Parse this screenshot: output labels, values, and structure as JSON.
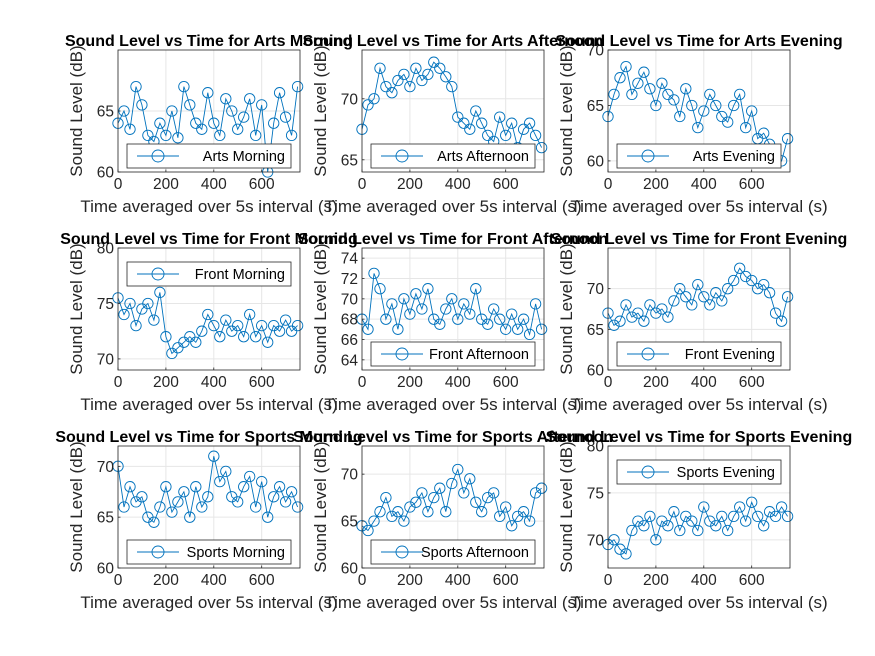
{
  "figure": {
    "background": "#ffffff"
  },
  "style": {
    "series_color": "#0072BD",
    "axis_color": "#262626",
    "grid_color": "#e6e6e6",
    "marker": "circle-open"
  },
  "chart_data": [
    {
      "type": "line",
      "title": "Sound Level vs Time for Arts Morning",
      "xlabel": "Time averaged over 5s interval (s)",
      "ylabel": "Sound Level (dB)",
      "xlim": [
        0,
        760
      ],
      "ylim": [
        60,
        70
      ],
      "xticks": [
        0,
        200,
        400,
        600
      ],
      "yticks": [
        60,
        65
      ],
      "grid": true,
      "legend_loc": "bottom",
      "series": [
        {
          "name": "Arts Morning",
          "x": [
            0,
            25,
            50,
            75,
            100,
            125,
            150,
            175,
            200,
            225,
            250,
            275,
            300,
            325,
            350,
            375,
            400,
            425,
            450,
            475,
            500,
            525,
            550,
            575,
            600,
            625,
            650,
            675,
            700,
            725,
            750
          ],
          "values": [
            64.0,
            65.0,
            63.5,
            67.0,
            65.5,
            63.0,
            62.5,
            64.0,
            63.0,
            65.0,
            62.8,
            67.0,
            65.5,
            64.0,
            63.5,
            66.5,
            64.0,
            63.0,
            66.0,
            65.0,
            63.5,
            64.5,
            66.0,
            63.0,
            65.5,
            60.0,
            64.0,
            66.5,
            64.5,
            63.0,
            67.0
          ]
        }
      ]
    },
    {
      "type": "line",
      "title": "Sound Level vs Time for Arts Afternoon",
      "xlabel": "Time averaged over 5s interval (s)",
      "ylabel": "Sound Level (dB)",
      "xlim": [
        0,
        760
      ],
      "ylim": [
        64,
        74
      ],
      "xticks": [
        0,
        200,
        400,
        600
      ],
      "yticks": [
        65,
        70
      ],
      "grid": true,
      "legend_loc": "bottom",
      "series": [
        {
          "name": "Arts Afternoon",
          "x": [
            0,
            25,
            50,
            75,
            100,
            125,
            150,
            175,
            200,
            225,
            250,
            275,
            300,
            325,
            350,
            375,
            400,
            425,
            450,
            475,
            500,
            525,
            550,
            575,
            600,
            625,
            650,
            675,
            700,
            725,
            750
          ],
          "values": [
            67.5,
            69.5,
            70.0,
            72.5,
            71.0,
            70.5,
            71.5,
            72.0,
            71.0,
            72.5,
            71.5,
            72.0,
            73.0,
            72.5,
            71.8,
            71.0,
            68.5,
            68.0,
            67.5,
            69.0,
            68.0,
            67.0,
            66.5,
            68.5,
            67.0,
            68.0,
            66.0,
            67.5,
            68.0,
            67.0,
            66.0
          ]
        }
      ]
    },
    {
      "type": "line",
      "title": "Sound Level vs Time for Arts Evening",
      "xlabel": "Time averaged over 5s interval (s)",
      "ylabel": "Sound Level (dB)",
      "xlim": [
        0,
        760
      ],
      "ylim": [
        59,
        70
      ],
      "xticks": [
        0,
        200,
        400,
        600
      ],
      "yticks": [
        60,
        65,
        70
      ],
      "grid": true,
      "legend_loc": "bottom",
      "series": [
        {
          "name": "Arts Evening",
          "x": [
            0,
            25,
            50,
            75,
            100,
            125,
            150,
            175,
            200,
            225,
            250,
            275,
            300,
            325,
            350,
            375,
            400,
            425,
            450,
            475,
            500,
            525,
            550,
            575,
            600,
            625,
            650,
            675,
            700,
            725,
            750
          ],
          "values": [
            64.0,
            66.0,
            67.5,
            68.5,
            66.0,
            67.0,
            68.0,
            66.5,
            65.0,
            67.0,
            66.0,
            65.5,
            64.0,
            66.5,
            65.0,
            63.0,
            64.5,
            66.0,
            65.0,
            64.0,
            63.5,
            65.0,
            66.0,
            63.0,
            64.5,
            62.0,
            62.5,
            61.5,
            60.5,
            60.0,
            62.0
          ]
        }
      ]
    },
    {
      "type": "line",
      "title": "Sound Level vs Time for Front Morning",
      "xlabel": "Time averaged over 5s interval (s)",
      "ylabel": "Sound Level (dB)",
      "xlim": [
        0,
        760
      ],
      "ylim": [
        69,
        80
      ],
      "xticks": [
        0,
        200,
        400,
        600
      ],
      "yticks": [
        70,
        75,
        80
      ],
      "grid": true,
      "legend_loc": "top",
      "series": [
        {
          "name": "Front Morning",
          "x": [
            0,
            25,
            50,
            75,
            100,
            125,
            150,
            175,
            200,
            225,
            250,
            275,
            300,
            325,
            350,
            375,
            400,
            425,
            450,
            475,
            500,
            525,
            550,
            575,
            600,
            625,
            650,
            675,
            700,
            725,
            750
          ],
          "values": [
            75.5,
            74.0,
            75.0,
            73.0,
            74.5,
            75.0,
            73.5,
            76.0,
            72.0,
            70.5,
            71.0,
            71.5,
            72.0,
            71.5,
            72.5,
            74.0,
            73.0,
            72.0,
            73.5,
            72.5,
            73.0,
            72.0,
            74.0,
            72.0,
            73.0,
            71.5,
            73.0,
            72.5,
            73.5,
            72.5,
            73.0
          ]
        }
      ]
    },
    {
      "type": "line",
      "title": "Sound Level vs Time for Front Afternoon",
      "xlabel": "Time averaged over 5s interval (s)",
      "ylabel": "Sound Level (dB)",
      "xlim": [
        0,
        760
      ],
      "ylim": [
        63,
        75
      ],
      "xticks": [
        0,
        200,
        400,
        600
      ],
      "yticks": [
        64,
        66,
        68,
        70,
        72,
        74
      ],
      "grid": true,
      "legend_loc": "bottom",
      "series": [
        {
          "name": "Front Afternoon",
          "x": [
            0,
            25,
            50,
            75,
            100,
            125,
            150,
            175,
            200,
            225,
            250,
            275,
            300,
            325,
            350,
            375,
            400,
            425,
            450,
            475,
            500,
            525,
            550,
            575,
            600,
            625,
            650,
            675,
            700,
            725,
            750
          ],
          "values": [
            68.0,
            67.0,
            72.5,
            71.0,
            68.0,
            69.5,
            67.0,
            70.0,
            68.5,
            70.5,
            69.0,
            71.0,
            68.0,
            67.5,
            69.0,
            70.0,
            68.0,
            69.5,
            68.5,
            71.0,
            68.0,
            67.5,
            69.0,
            68.0,
            67.0,
            68.5,
            67.0,
            68.0,
            66.5,
            69.5,
            67.0
          ]
        }
      ]
    },
    {
      "type": "line",
      "title": "Sound Level vs Time for Front Evening",
      "xlabel": "Time averaged over 5s interval (s)",
      "ylabel": "Sound Level (dB)",
      "xlim": [
        0,
        760
      ],
      "ylim": [
        60,
        75
      ],
      "xticks": [
        0,
        200,
        400,
        600
      ],
      "yticks": [
        60,
        65,
        70
      ],
      "grid": true,
      "legend_loc": "bottom",
      "series": [
        {
          "name": "Front Evening",
          "x": [
            0,
            25,
            50,
            75,
            100,
            125,
            150,
            175,
            200,
            225,
            250,
            275,
            300,
            325,
            350,
            375,
            400,
            425,
            450,
            475,
            500,
            525,
            550,
            575,
            600,
            625,
            650,
            675,
            700,
            725,
            750
          ],
          "values": [
            67.0,
            65.5,
            66.0,
            68.0,
            66.5,
            67.0,
            66.0,
            68.0,
            67.0,
            67.5,
            66.5,
            68.5,
            70.0,
            69.0,
            68.0,
            70.5,
            69.0,
            68.0,
            69.5,
            68.5,
            70.0,
            71.0,
            72.5,
            71.5,
            71.0,
            70.0,
            70.5,
            69.5,
            67.0,
            66.0,
            69.0
          ]
        }
      ]
    },
    {
      "type": "line",
      "title": "Sound Level vs Time for Sports Morning",
      "xlabel": "Time averaged over 5s interval (s)",
      "ylabel": "Sound Level (dB)",
      "xlim": [
        0,
        760
      ],
      "ylim": [
        60,
        72
      ],
      "xticks": [
        0,
        200,
        400,
        600
      ],
      "yticks": [
        60,
        65,
        70
      ],
      "grid": true,
      "legend_loc": "bottom",
      "series": [
        {
          "name": "Sports Morning",
          "x": [
            0,
            25,
            50,
            75,
            100,
            125,
            150,
            175,
            200,
            225,
            250,
            275,
            300,
            325,
            350,
            375,
            400,
            425,
            450,
            475,
            500,
            525,
            550,
            575,
            600,
            625,
            650,
            675,
            700,
            725,
            750
          ],
          "values": [
            70.0,
            66.0,
            68.0,
            66.5,
            67.0,
            65.0,
            64.5,
            66.0,
            68.0,
            65.5,
            66.5,
            67.5,
            65.0,
            68.0,
            66.0,
            67.0,
            71.0,
            68.5,
            69.5,
            67.0,
            66.5,
            68.0,
            69.0,
            66.0,
            68.5,
            65.0,
            67.0,
            68.0,
            66.5,
            67.5,
            66.0
          ]
        }
      ]
    },
    {
      "type": "line",
      "title": "Sound Level vs Time for Sports Afternoon",
      "xlabel": "Time averaged over 5s interval (s)",
      "ylabel": "Sound Level (dB)",
      "xlim": [
        0,
        760
      ],
      "ylim": [
        60,
        73
      ],
      "xticks": [
        0,
        200,
        400,
        600
      ],
      "yticks": [
        60,
        65,
        70
      ],
      "grid": true,
      "legend_loc": "bottom",
      "series": [
        {
          "name": "Sports Afternoon",
          "x": [
            0,
            25,
            50,
            75,
            100,
            125,
            150,
            175,
            200,
            225,
            250,
            275,
            300,
            325,
            350,
            375,
            400,
            425,
            450,
            475,
            500,
            525,
            550,
            575,
            600,
            625,
            650,
            675,
            700,
            725,
            750
          ],
          "values": [
            64.5,
            64.0,
            65.0,
            66.0,
            67.5,
            65.5,
            66.0,
            65.0,
            66.5,
            67.0,
            68.0,
            66.0,
            67.5,
            68.5,
            66.0,
            69.0,
            70.5,
            68.0,
            69.5,
            67.0,
            66.0,
            67.5,
            68.0,
            65.5,
            66.5,
            64.5,
            65.5,
            66.0,
            65.0,
            68.0,
            68.5
          ]
        }
      ]
    },
    {
      "type": "line",
      "title": "Sound Level vs Time for Sports Evening",
      "xlabel": "Time averaged over 5s interval (s)",
      "ylabel": "Sound Level (dB)",
      "xlim": [
        0,
        760
      ],
      "ylim": [
        67,
        80
      ],
      "xticks": [
        0,
        200,
        400,
        600
      ],
      "yticks": [
        70,
        75,
        80
      ],
      "grid": true,
      "legend_loc": "top",
      "series": [
        {
          "name": "Sports Evening",
          "x": [
            0,
            25,
            50,
            75,
            100,
            125,
            150,
            175,
            200,
            225,
            250,
            275,
            300,
            325,
            350,
            375,
            400,
            425,
            450,
            475,
            500,
            525,
            550,
            575,
            600,
            625,
            650,
            675,
            700,
            725,
            750
          ],
          "values": [
            69.5,
            70.0,
            69.0,
            68.5,
            71.0,
            72.0,
            71.5,
            72.5,
            70.0,
            72.0,
            71.5,
            73.0,
            71.0,
            72.5,
            72.0,
            71.0,
            73.5,
            72.0,
            71.5,
            72.5,
            71.0,
            72.5,
            73.5,
            72.0,
            74.0,
            72.5,
            71.5,
            73.0,
            72.5,
            73.5,
            72.5
          ]
        }
      ]
    }
  ]
}
